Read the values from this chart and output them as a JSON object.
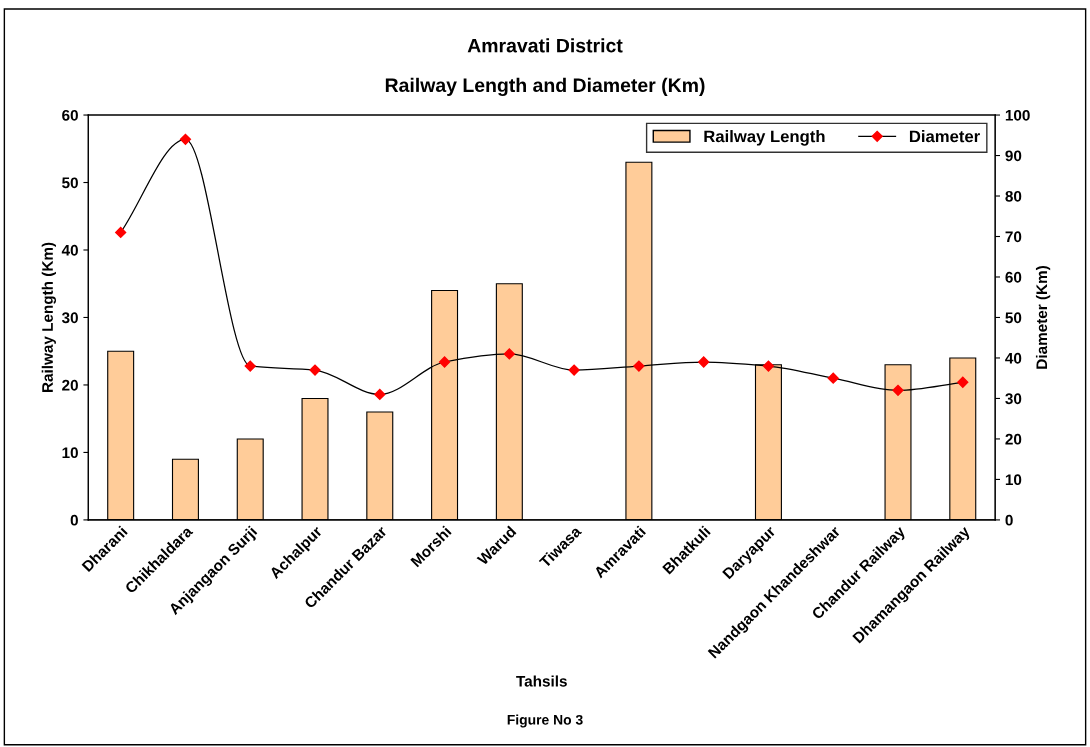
{
  "chart_data": {
    "type": "bar",
    "title": "Amravati District",
    "subtitle": "Railway Length and Diameter (Km)",
    "xlabel": "Tahsils",
    "ylabel": "Railway Length (Km)",
    "y2label": "Diameter (Km)",
    "categories": [
      "Dharani",
      "Chikhaldara",
      "Anjangaon Surji",
      "Achalpur",
      "Chandur Bazar",
      "Morshi",
      "Warud",
      "Tiwasa",
      "Amravati",
      "Bhatkuli",
      "Daryapur",
      "Nandgaon Khandeshwar",
      "Chandur Railway",
      "Dhamangaon Railway"
    ],
    "series": [
      {
        "name": "Railway Length",
        "color": "#ffcc99",
        "values": [
          25,
          9,
          12,
          18,
          16,
          34,
          35,
          null,
          53,
          null,
          23,
          null,
          23,
          24
        ]
      },
      {
        "name": "Diameter",
        "type": "line",
        "axis": "y2",
        "color": "#ff0000",
        "marker": "diamond",
        "values": [
          71,
          94,
          38,
          37,
          31,
          39,
          41,
          37,
          38,
          39,
          38,
          35,
          32,
          34
        ]
      }
    ],
    "ylim": [
      0,
      60
    ],
    "yticks": [
      0,
      10,
      20,
      30,
      40,
      50,
      60
    ],
    "y2lim": [
      0,
      100
    ],
    "y2ticks": [
      0,
      10,
      20,
      30,
      40,
      50,
      60,
      70,
      80,
      90,
      100
    ],
    "legend": "top right",
    "grid": false,
    "annotations": [
      "Figure No 3"
    ]
  }
}
